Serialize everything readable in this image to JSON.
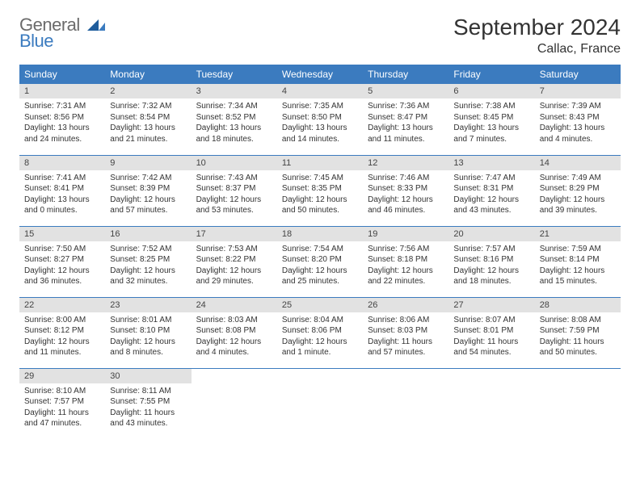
{
  "logo": {
    "general": "General",
    "blue": "Blue"
  },
  "title": "September 2024",
  "location": "Callac, France",
  "colors": {
    "header_bg": "#3b7bbf",
    "header_fg": "#ffffff",
    "daynum_bg": "#e2e2e2",
    "text": "#333333",
    "logo_gray": "#6b6b6b",
    "logo_blue": "#3b7bbf"
  },
  "day_headers": [
    "Sunday",
    "Monday",
    "Tuesday",
    "Wednesday",
    "Thursday",
    "Friday",
    "Saturday"
  ],
  "weeks": [
    [
      {
        "num": "1",
        "sunrise": "Sunrise: 7:31 AM",
        "sunset": "Sunset: 8:56 PM",
        "daylight": "Daylight: 13 hours and 24 minutes."
      },
      {
        "num": "2",
        "sunrise": "Sunrise: 7:32 AM",
        "sunset": "Sunset: 8:54 PM",
        "daylight": "Daylight: 13 hours and 21 minutes."
      },
      {
        "num": "3",
        "sunrise": "Sunrise: 7:34 AM",
        "sunset": "Sunset: 8:52 PM",
        "daylight": "Daylight: 13 hours and 18 minutes."
      },
      {
        "num": "4",
        "sunrise": "Sunrise: 7:35 AM",
        "sunset": "Sunset: 8:50 PM",
        "daylight": "Daylight: 13 hours and 14 minutes."
      },
      {
        "num": "5",
        "sunrise": "Sunrise: 7:36 AM",
        "sunset": "Sunset: 8:47 PM",
        "daylight": "Daylight: 13 hours and 11 minutes."
      },
      {
        "num": "6",
        "sunrise": "Sunrise: 7:38 AM",
        "sunset": "Sunset: 8:45 PM",
        "daylight": "Daylight: 13 hours and 7 minutes."
      },
      {
        "num": "7",
        "sunrise": "Sunrise: 7:39 AM",
        "sunset": "Sunset: 8:43 PM",
        "daylight": "Daylight: 13 hours and 4 minutes."
      }
    ],
    [
      {
        "num": "8",
        "sunrise": "Sunrise: 7:41 AM",
        "sunset": "Sunset: 8:41 PM",
        "daylight": "Daylight: 13 hours and 0 minutes."
      },
      {
        "num": "9",
        "sunrise": "Sunrise: 7:42 AM",
        "sunset": "Sunset: 8:39 PM",
        "daylight": "Daylight: 12 hours and 57 minutes."
      },
      {
        "num": "10",
        "sunrise": "Sunrise: 7:43 AM",
        "sunset": "Sunset: 8:37 PM",
        "daylight": "Daylight: 12 hours and 53 minutes."
      },
      {
        "num": "11",
        "sunrise": "Sunrise: 7:45 AM",
        "sunset": "Sunset: 8:35 PM",
        "daylight": "Daylight: 12 hours and 50 minutes."
      },
      {
        "num": "12",
        "sunrise": "Sunrise: 7:46 AM",
        "sunset": "Sunset: 8:33 PM",
        "daylight": "Daylight: 12 hours and 46 minutes."
      },
      {
        "num": "13",
        "sunrise": "Sunrise: 7:47 AM",
        "sunset": "Sunset: 8:31 PM",
        "daylight": "Daylight: 12 hours and 43 minutes."
      },
      {
        "num": "14",
        "sunrise": "Sunrise: 7:49 AM",
        "sunset": "Sunset: 8:29 PM",
        "daylight": "Daylight: 12 hours and 39 minutes."
      }
    ],
    [
      {
        "num": "15",
        "sunrise": "Sunrise: 7:50 AM",
        "sunset": "Sunset: 8:27 PM",
        "daylight": "Daylight: 12 hours and 36 minutes."
      },
      {
        "num": "16",
        "sunrise": "Sunrise: 7:52 AM",
        "sunset": "Sunset: 8:25 PM",
        "daylight": "Daylight: 12 hours and 32 minutes."
      },
      {
        "num": "17",
        "sunrise": "Sunrise: 7:53 AM",
        "sunset": "Sunset: 8:22 PM",
        "daylight": "Daylight: 12 hours and 29 minutes."
      },
      {
        "num": "18",
        "sunrise": "Sunrise: 7:54 AM",
        "sunset": "Sunset: 8:20 PM",
        "daylight": "Daylight: 12 hours and 25 minutes."
      },
      {
        "num": "19",
        "sunrise": "Sunrise: 7:56 AM",
        "sunset": "Sunset: 8:18 PM",
        "daylight": "Daylight: 12 hours and 22 minutes."
      },
      {
        "num": "20",
        "sunrise": "Sunrise: 7:57 AM",
        "sunset": "Sunset: 8:16 PM",
        "daylight": "Daylight: 12 hours and 18 minutes."
      },
      {
        "num": "21",
        "sunrise": "Sunrise: 7:59 AM",
        "sunset": "Sunset: 8:14 PM",
        "daylight": "Daylight: 12 hours and 15 minutes."
      }
    ],
    [
      {
        "num": "22",
        "sunrise": "Sunrise: 8:00 AM",
        "sunset": "Sunset: 8:12 PM",
        "daylight": "Daylight: 12 hours and 11 minutes."
      },
      {
        "num": "23",
        "sunrise": "Sunrise: 8:01 AM",
        "sunset": "Sunset: 8:10 PM",
        "daylight": "Daylight: 12 hours and 8 minutes."
      },
      {
        "num": "24",
        "sunrise": "Sunrise: 8:03 AM",
        "sunset": "Sunset: 8:08 PM",
        "daylight": "Daylight: 12 hours and 4 minutes."
      },
      {
        "num": "25",
        "sunrise": "Sunrise: 8:04 AM",
        "sunset": "Sunset: 8:06 PM",
        "daylight": "Daylight: 12 hours and 1 minute."
      },
      {
        "num": "26",
        "sunrise": "Sunrise: 8:06 AM",
        "sunset": "Sunset: 8:03 PM",
        "daylight": "Daylight: 11 hours and 57 minutes."
      },
      {
        "num": "27",
        "sunrise": "Sunrise: 8:07 AM",
        "sunset": "Sunset: 8:01 PM",
        "daylight": "Daylight: 11 hours and 54 minutes."
      },
      {
        "num": "28",
        "sunrise": "Sunrise: 8:08 AM",
        "sunset": "Sunset: 7:59 PM",
        "daylight": "Daylight: 11 hours and 50 minutes."
      }
    ],
    [
      {
        "num": "29",
        "sunrise": "Sunrise: 8:10 AM",
        "sunset": "Sunset: 7:57 PM",
        "daylight": "Daylight: 11 hours and 47 minutes."
      },
      {
        "num": "30",
        "sunrise": "Sunrise: 8:11 AM",
        "sunset": "Sunset: 7:55 PM",
        "daylight": "Daylight: 11 hours and 43 minutes."
      },
      null,
      null,
      null,
      null,
      null
    ]
  ]
}
